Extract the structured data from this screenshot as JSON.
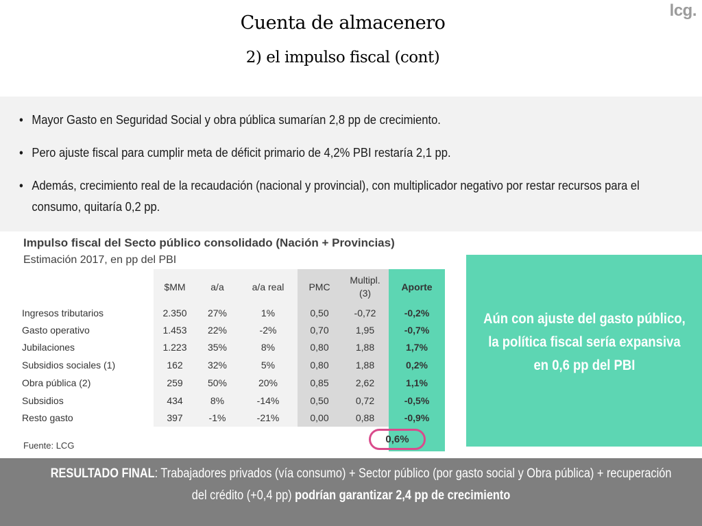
{
  "logo": "lcg.",
  "title": "Cuenta de almacenero",
  "subtitle": "2) el impulso fiscal (cont)",
  "bullets": [
    "Mayor Gasto en Seguridad Social y obra pública sumarían 2,8 pp de crecimiento.",
    "Pero ajuste fiscal para cumplir meta de déficit primario de 4,2% PBI restaría 2,1 pp.",
    "Además, crecimiento real de la recaudación (nacional y provincial), con multiplicador negativo por restar recursos para el consumo, quitaría 0,2 pp."
  ],
  "bullet_marker": "•",
  "table": {
    "title": "Impulso fiscal del Secto público consolidado (Nación + Provincias)",
    "subtitle": "Estimación 2017, en pp del PBI",
    "headers": {
      "mm": "$MM",
      "aa": "a/a",
      "aa_real": "a/a real",
      "pmc": "PMC",
      "multipl": "Multipl. (3)",
      "aporte": "Aporte"
    },
    "rows": [
      {
        "label": "Ingresos tributarios",
        "mm": "2.350",
        "aa": "27%",
        "aa_real": "1%",
        "pmc": "0,50",
        "multipl": "-0,72",
        "aporte": "-0,2%"
      },
      {
        "label": "Gasto operativo",
        "mm": "1.453",
        "aa": "22%",
        "aa_real": "-2%",
        "pmc": "0,70",
        "multipl": "1,95",
        "aporte": "-0,7%"
      },
      {
        "label": "Jubilaciones",
        "mm": "1.223",
        "aa": "35%",
        "aa_real": "8%",
        "pmc": "0,80",
        "multipl": "1,88",
        "aporte": "1,7%"
      },
      {
        "label": "Subsidios sociales (1)",
        "mm": "162",
        "aa": "32%",
        "aa_real": "5%",
        "pmc": "0,80",
        "multipl": "1,88",
        "aporte": "0,2%"
      },
      {
        "label": "Obra pública (2)",
        "mm": "259",
        "aa": "50%",
        "aa_real": "20%",
        "pmc": "0,85",
        "multipl": "2,62",
        "aporte": "1,1%"
      },
      {
        "label": "Subsidios",
        "mm": "434",
        "aa": "8%",
        "aa_real": "-14%",
        "pmc": "0,50",
        "multipl": "0,72",
        "aporte": "-0,5%"
      },
      {
        "label": "Resto gasto",
        "mm": "397",
        "aa": "-1%",
        "aa_real": "-21%",
        "pmc": "0,00",
        "multipl": "0,88",
        "aporte": "-0,9%"
      }
    ],
    "total": "0,6%",
    "source": "Fuente: LCG"
  },
  "callout": {
    "lines": [
      "Aún con ajuste del gasto público,",
      "la política fiscal sería expansiva",
      "en 0,6 pp del PBI"
    ]
  },
  "result": {
    "lead_bold": "RESULTADO FINAL",
    "lead_rest": ": Trabajadores privados (vía consumo) + Sector público (por gasto social y Obra pública) + recuperación",
    "line2_plain": "del crédito (+0,4 pp) ",
    "line2_bold": "podrían garantizar 2,4 pp de crecimiento"
  },
  "colors": {
    "accent_green": "#5dd6b3",
    "highlight_circle": "#d94b8c",
    "result_band": "#7f7f7f",
    "bullet_panel": "#f2f2f2"
  }
}
